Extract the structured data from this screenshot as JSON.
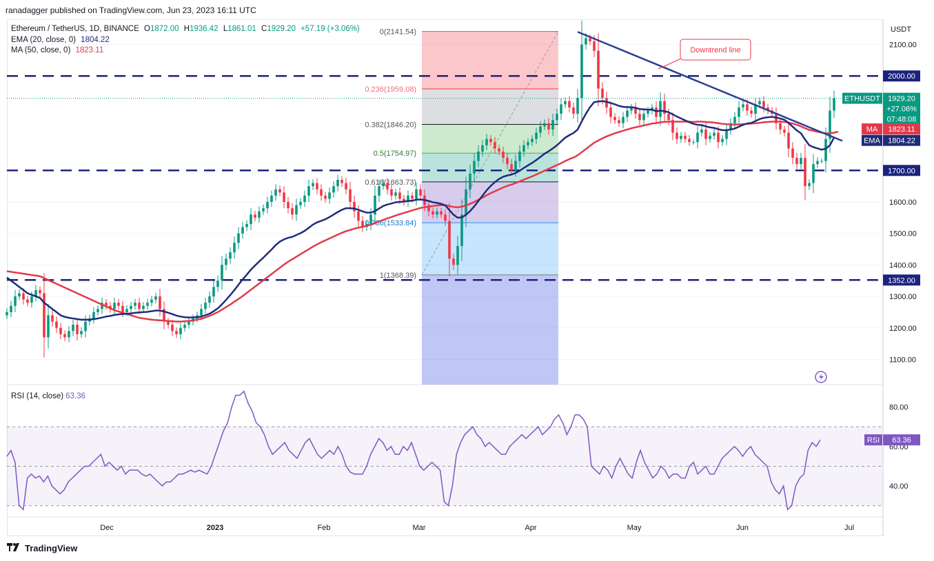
{
  "header": {
    "publisher": "ranadagger published on TradingView.com, Jun 23, 2023 16:11 UTC"
  },
  "legend": {
    "symbol": "Ethereum / TetherUS, 1D, BINANCE",
    "o_label": "O",
    "o_val": "1872.00",
    "h_label": "H",
    "h_val": "1936.42",
    "l_label": "L",
    "l_val": "1861.01",
    "c_label": "C",
    "c_val": "1929.20",
    "change": "+57.19 (+3.06%)",
    "ema_label": "EMA (20, close, 0)",
    "ema_val": "1804.22",
    "ma_label": "MA (50, close, 0)",
    "ma_val": "1823.11"
  },
  "rsi_legend": {
    "label": "RSI (14, close)",
    "val": "63.36"
  },
  "footer": {
    "brand": "TradingView"
  },
  "colors": {
    "up": "#089981",
    "down": "#f23645",
    "ema": "#1e2c7a",
    "ma": "#e03a4a",
    "level": "#1a237e",
    "trend": "#2a3f8f",
    "rsi": "#7e57c2"
  },
  "chart_data": [
    {
      "type": "candlestick",
      "title": "Ethereum / TetherUS, 1D, BINANCE",
      "ylabel": "USDT",
      "ylim": [
        1020,
        2180
      ],
      "x_ticks": [
        "Dec",
        "2023",
        "Feb",
        "Mar",
        "Apr",
        "May",
        "Jun",
        "Jul"
      ],
      "y_ticks": [
        "1100.00",
        "1200.00",
        "1300.00",
        "1400.00",
        "1500.00",
        "1600.00",
        "2100.00"
      ],
      "horizontal_levels": [
        {
          "price": 2000,
          "label": "2000.00"
        },
        {
          "price": 1700,
          "label": "1700.00"
        },
        {
          "price": 1352,
          "label": "1352.00"
        }
      ],
      "fibonacci": {
        "high": 2141.54,
        "low": 1368.39,
        "levels": [
          {
            "label": "0(2141.54)",
            "price": 2141.54
          },
          {
            "label": "0.236(1959.08)",
            "price": 1959.08
          },
          {
            "label": "0.382(1846.20)",
            "price": 1846.2
          },
          {
            "label": "0.5(1754.97)",
            "price": 1754.97
          },
          {
            "label": "0.618(1663.73)",
            "price": 1663.73
          },
          {
            "label": "0.786(1533.84)",
            "price": 1533.84
          },
          {
            "label": "1(1368.39)",
            "price": 1368.39
          }
        ]
      },
      "annotation": "Downtrend line",
      "last_price": {
        "symbol": "ETHUSDT",
        "price": "1929.20",
        "change": "+27.06%",
        "countdown": "07:48:08"
      },
      "indicator_tags": [
        {
          "name": "MA",
          "value": "1823.11"
        },
        {
          "name": "EMA",
          "value": "1804.22"
        }
      ],
      "closes": [
        1250,
        1270,
        1300,
        1310,
        1290,
        1280,
        1300,
        1320,
        1310,
        1170,
        1240,
        1220,
        1200,
        1180,
        1170,
        1190,
        1210,
        1180,
        1190,
        1220,
        1230,
        1250,
        1260,
        1280,
        1270,
        1260,
        1280,
        1270,
        1250,
        1260,
        1270,
        1280,
        1260,
        1270,
        1280,
        1290,
        1300,
        1260,
        1220,
        1210,
        1190,
        1180,
        1200,
        1210,
        1220,
        1230,
        1240,
        1260,
        1280,
        1300,
        1330,
        1350,
        1400,
        1420,
        1440,
        1470,
        1500,
        1520,
        1530,
        1560,
        1550,
        1570,
        1580,
        1600,
        1620,
        1640,
        1630,
        1600,
        1580,
        1560,
        1590,
        1600,
        1620,
        1650,
        1660,
        1640,
        1620,
        1610,
        1630,
        1650,
        1670,
        1660,
        1640,
        1600,
        1570,
        1540,
        1520,
        1530,
        1560,
        1620,
        1650,
        1660,
        1640,
        1620,
        1630,
        1610,
        1600,
        1620,
        1610,
        1640,
        1620,
        1590,
        1570,
        1560,
        1570,
        1560,
        1540,
        1420,
        1400,
        1460,
        1560,
        1640,
        1690,
        1730,
        1760,
        1780,
        1800,
        1790,
        1770,
        1760,
        1740,
        1720,
        1700,
        1730,
        1760,
        1780,
        1790,
        1800,
        1820,
        1840,
        1850,
        1830,
        1860,
        1880,
        1910,
        1920,
        1900,
        1880,
        1930,
        2100,
        2120,
        2110,
        2080,
        1960,
        1930,
        1900,
        1870,
        1860,
        1850,
        1870,
        1890,
        1900,
        1880,
        1860,
        1880,
        1890,
        1900,
        1870,
        1920,
        1880,
        1860,
        1820,
        1800,
        1810,
        1800,
        1790,
        1790,
        1820,
        1830,
        1800,
        1810,
        1820,
        1790,
        1800,
        1830,
        1850,
        1870,
        1900,
        1910,
        1890,
        1880,
        1910,
        1920,
        1900,
        1890,
        1880,
        1850,
        1830,
        1820,
        1770,
        1740,
        1720,
        1740,
        1650,
        1660,
        1720,
        1730,
        1730,
        1800,
        1890,
        1929.2
      ],
      "ema20": [
        1360,
        1350,
        1340,
        1330,
        1320,
        1310,
        1305,
        1300,
        1295,
        1280,
        1270,
        1260,
        1250,
        1240,
        1235,
        1232,
        1230,
        1228,
        1226,
        1226,
        1226,
        1228,
        1230,
        1233,
        1236,
        1238,
        1241,
        1243,
        1244,
        1245,
        1246,
        1248,
        1249,
        1250,
        1251,
        1253,
        1255,
        1255,
        1252,
        1248,
        1244,
        1239,
        1236,
        1234,
        1233,
        1233,
        1234,
        1236,
        1240,
        1245,
        1253,
        1262,
        1275,
        1289,
        1304,
        1320,
        1337,
        1354,
        1369,
        1385,
        1398,
        1411,
        1423,
        1436,
        1449,
        1463,
        1474,
        1481,
        1486,
        1489,
        1495,
        1501,
        1508,
        1518,
        1528,
        1535,
        1540,
        1545,
        1552,
        1560,
        1568,
        1575,
        1580,
        1580,
        1579,
        1575,
        1570,
        1566,
        1566,
        1571,
        1579,
        1587,
        1592,
        1595,
        1599,
        1600,
        1601,
        1603,
        1604,
        1607,
        1608,
        1606,
        1603,
        1599,
        1597,
        1594,
        1589,
        1574,
        1559,
        1550,
        1551,
        1559,
        1571,
        1586,
        1603,
        1620,
        1637,
        1651,
        1663,
        1673,
        1680,
        1684,
        1687,
        1692,
        1699,
        1708,
        1716,
        1724,
        1733,
        1743,
        1753,
        1761,
        1770,
        1780,
        1792,
        1804,
        1812,
        1819,
        1830,
        1856,
        1880,
        1901,
        1917,
        1919,
        1920,
        1918,
        1914,
        1910,
        1905,
        1902,
        1901,
        1901,
        1899,
        1895,
        1894,
        1893,
        1893,
        1888,
        1890,
        1888,
        1885,
        1878,
        1871,
        1865,
        1859,
        1853,
        1848,
        1845,
        1844,
        1840,
        1837,
        1835,
        1831,
        1828,
        1828,
        1830,
        1833,
        1839,
        1845,
        1849,
        1851,
        1857,
        1863,
        1867,
        1869,
        1870,
        1868,
        1865,
        1861,
        1851,
        1839,
        1827,
        1818,
        1798,
        1780,
        1774,
        1770,
        1766,
        1769,
        1780,
        1804.22
      ],
      "ma50": [
        1380,
        1378,
        1376,
        1374,
        1372,
        1370,
        1368,
        1366,
        1364,
        1358,
        1352,
        1346,
        1340,
        1334,
        1328,
        1322,
        1316,
        1310,
        1304,
        1298,
        1292,
        1286,
        1280,
        1274,
        1268,
        1262,
        1256,
        1252,
        1248,
        1244,
        1240,
        1236,
        1232,
        1230,
        1228,
        1226,
        1225,
        1224,
        1223,
        1222,
        1221,
        1220,
        1220,
        1221,
        1222,
        1224,
        1226,
        1229,
        1233,
        1238,
        1244,
        1250,
        1258,
        1266,
        1274,
        1283,
        1292,
        1301,
        1311,
        1321,
        1331,
        1341,
        1351,
        1361,
        1371,
        1381,
        1391,
        1401,
        1410,
        1418,
        1426,
        1434,
        1442,
        1450,
        1458,
        1465,
        1472,
        1478,
        1484,
        1490,
        1496,
        1502,
        1507,
        1511,
        1515,
        1518,
        1521,
        1524,
        1528,
        1533,
        1538,
        1543,
        1548,
        1552,
        1557,
        1561,
        1565,
        1569,
        1573,
        1577,
        1581,
        1583,
        1585,
        1587,
        1589,
        1590,
        1590,
        1587,
        1584,
        1583,
        1585,
        1589,
        1594,
        1600,
        1607,
        1614,
        1621,
        1628,
        1634,
        1640,
        1646,
        1651,
        1655,
        1660,
        1665,
        1671,
        1676,
        1681,
        1687,
        1693,
        1699,
        1705,
        1711,
        1717,
        1723,
        1730,
        1736,
        1741,
        1748,
        1758,
        1768,
        1778,
        1788,
        1795,
        1802,
        1808,
        1813,
        1818,
        1822,
        1826,
        1830,
        1834,
        1837,
        1840,
        1843,
        1846,
        1849,
        1850,
        1853,
        1854,
        1855,
        1855,
        1855,
        1855,
        1855,
        1855,
        1854,
        1855,
        1855,
        1854,
        1853,
        1852,
        1850,
        1848,
        1847,
        1846,
        1846,
        1846,
        1847,
        1848,
        1849,
        1850,
        1851,
        1853,
        1854,
        1855,
        1855,
        1855,
        1854,
        1852,
        1849,
        1845,
        1840,
        1834,
        1829,
        1826,
        1823,
        1820,
        1818,
        1818,
        1820,
        1823.11
      ]
    },
    {
      "type": "line",
      "title": "RSI (14, close)",
      "ylim": [
        25,
        90
      ],
      "y_ticks": [
        "80.00",
        "60.00",
        "40.00"
      ],
      "bands": [
        70,
        50,
        30
      ],
      "last": "63.36",
      "values": [
        55,
        58,
        52,
        30,
        28,
        44,
        46,
        44,
        45,
        42,
        45,
        40,
        38,
        36,
        38,
        42,
        44,
        46,
        48,
        50,
        50,
        52,
        54,
        56,
        50,
        52,
        50,
        48,
        50,
        46,
        48,
        48,
        48,
        46,
        45,
        46,
        44,
        42,
        40,
        42,
        42,
        44,
        46,
        46,
        47,
        48,
        47,
        48,
        47,
        46,
        50,
        56,
        62,
        68,
        72,
        80,
        86,
        86,
        88,
        82,
        78,
        72,
        70,
        66,
        60,
        56,
        58,
        60,
        62,
        58,
        56,
        54,
        58,
        62,
        64,
        60,
        56,
        54,
        56,
        58,
        56,
        60,
        56,
        50,
        47,
        46,
        46,
        46,
        50,
        56,
        60,
        64,
        62,
        58,
        60,
        56,
        56,
        60,
        58,
        62,
        56,
        50,
        48,
        50,
        52,
        50,
        48,
        32,
        30,
        40,
        56,
        62,
        66,
        68,
        70,
        66,
        64,
        60,
        62,
        60,
        58,
        56,
        56,
        60,
        62,
        64,
        66,
        64,
        66,
        68,
        70,
        66,
        68,
        70,
        74,
        76,
        72,
        66,
        70,
        76,
        76,
        74,
        70,
        50,
        48,
        46,
        50,
        48,
        44,
        50,
        54,
        50,
        46,
        44,
        52,
        58,
        52,
        48,
        44,
        46,
        50,
        48,
        44,
        46,
        46,
        44,
        44,
        50,
        52,
        46,
        48,
        50,
        46,
        46,
        50,
        54,
        56,
        58,
        60,
        58,
        55,
        58,
        60,
        56,
        54,
        52,
        50,
        42,
        38,
        36,
        40,
        28,
        30,
        40,
        44,
        46,
        58,
        62,
        60,
        63.36
      ]
    }
  ]
}
